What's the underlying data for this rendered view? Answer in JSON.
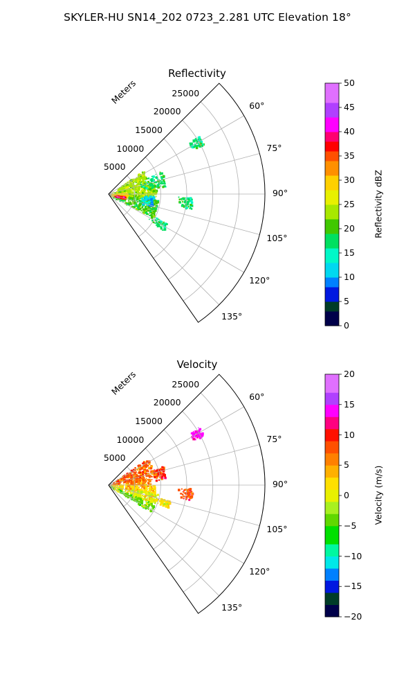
{
  "title": "SKYLER-HU  SN14_202  0723_2.281 UTC Elevation 18°",
  "chart_data": [
    {
      "type": "heatmap",
      "title": "Reflectivity",
      "projection": "polar sector (PPI)",
      "range_label": "Meters",
      "range_ticks": [
        5000,
        10000,
        15000,
        20000,
        25000
      ],
      "range_tick_labels": [
        "5000",
        "10000",
        "15000",
        "20000",
        "25000"
      ],
      "range_max": 30000,
      "azimuth_range_deg": [
        45,
        145
      ],
      "azimuth_ticks": [
        60,
        75,
        90,
        105,
        120,
        135
      ],
      "azimuth_tick_labels": [
        "60°",
        "75°",
        "90°",
        "105°",
        "120°",
        "135°"
      ],
      "grid": true,
      "colorbar": {
        "label": "Reflectivity dBZ",
        "min": 0,
        "max": 50,
        "ticks": [
          0,
          5,
          10,
          15,
          20,
          25,
          30,
          35,
          40,
          45,
          50
        ],
        "tick_labels": [
          "0",
          "5",
          "10",
          "15",
          "20",
          "25",
          "30",
          "35",
          "40",
          "45",
          "50"
        ],
        "colormap": [
          [
            0,
            "#00004a"
          ],
          [
            3,
            "#003c28"
          ],
          [
            5,
            "#0018e0"
          ],
          [
            8,
            "#0080ff"
          ],
          [
            10,
            "#00d8f0"
          ],
          [
            13,
            "#00f8c8"
          ],
          [
            16,
            "#00e060"
          ],
          [
            19,
            "#40c800"
          ],
          [
            22,
            "#a8e800"
          ],
          [
            25,
            "#e8f000"
          ],
          [
            28,
            "#ffd000"
          ],
          [
            31,
            "#ff9000"
          ],
          [
            34,
            "#ff5000"
          ],
          [
            36,
            "#ff0000"
          ],
          [
            38,
            "#ff0070"
          ],
          [
            40,
            "#ff00ff"
          ],
          [
            43,
            "#b040ff"
          ],
          [
            46,
            "#e070ff"
          ],
          [
            50,
            "#f8e0ff"
          ]
        ]
      },
      "echo_regions": [
        {
          "az": [
            55,
            76
          ],
          "range": [
            0,
            8000
          ],
          "value": 22
        },
        {
          "az": [
            76,
            96
          ],
          "range": [
            0,
            9000
          ],
          "value": 24
        },
        {
          "az": [
            96,
            118
          ],
          "range": [
            0,
            9500
          ],
          "value": 20
        },
        {
          "az": [
            84,
            100
          ],
          "range": [
            0,
            3500
          ],
          "value": 29
        },
        {
          "az": [
            98,
            104
          ],
          "range": [
            1000,
            3000
          ],
          "value": 37
        },
        {
          "az": [
            66,
            82
          ],
          "range": [
            6000,
            11000
          ],
          "value": 17
        },
        {
          "az": [
            92,
            106
          ],
          "range": [
            6000,
            8500
          ],
          "value": 12
        },
        {
          "az": [
            92,
            100
          ],
          "range": [
            13000,
            16000
          ],
          "value": 16
        },
        {
          "az": [
            116,
            124
          ],
          "range": [
            9000,
            12500
          ],
          "value": 17
        },
        {
          "az": [
            57,
            62
          ],
          "range": [
            18000,
            20500
          ],
          "value": 16
        }
      ]
    },
    {
      "type": "heatmap",
      "title": "Velocity",
      "projection": "polar sector (PPI)",
      "range_label": "Meters",
      "range_ticks": [
        5000,
        10000,
        15000,
        20000,
        25000
      ],
      "range_tick_labels": [
        "5000",
        "10000",
        "15000",
        "20000",
        "25000"
      ],
      "range_max": 30000,
      "azimuth_range_deg": [
        45,
        145
      ],
      "azimuth_ticks": [
        60,
        75,
        90,
        105,
        120,
        135
      ],
      "azimuth_tick_labels": [
        "60°",
        "75°",
        "90°",
        "105°",
        "120°",
        "135°"
      ],
      "grid": true,
      "colorbar": {
        "label": "Velocity (m/s)",
        "min": -20,
        "max": 20,
        "ticks": [
          -20,
          -15,
          -10,
          -5,
          0,
          5,
          10,
          15,
          20
        ],
        "tick_labels": [
          "−20",
          "−15",
          "−10",
          "−5",
          "0",
          "5",
          "10",
          "15",
          "20"
        ],
        "colormap": [
          [
            -20,
            "#00004a"
          ],
          [
            -18,
            "#003c28"
          ],
          [
            -16,
            "#0018e0"
          ],
          [
            -14,
            "#0080ff"
          ],
          [
            -12,
            "#00e8e8"
          ],
          [
            -10,
            "#00f8a0"
          ],
          [
            -8,
            "#00e000"
          ],
          [
            -5,
            "#60d800"
          ],
          [
            -3,
            "#a8f020"
          ],
          [
            -1,
            "#e8f000"
          ],
          [
            1,
            "#ffe000"
          ],
          [
            3,
            "#ffb000"
          ],
          [
            5,
            "#ff8000"
          ],
          [
            7,
            "#ff5000"
          ],
          [
            9,
            "#ff1000"
          ],
          [
            11,
            "#ff0080"
          ],
          [
            13,
            "#ff00ff"
          ],
          [
            15,
            "#b040ff"
          ],
          [
            17,
            "#e070ff"
          ],
          [
            20,
            "#f8e0ff"
          ]
        ]
      },
      "echo_regions": [
        {
          "az": [
            55,
            78
          ],
          "range": [
            0,
            9000
          ],
          "value": 7
        },
        {
          "az": [
            78,
            88
          ],
          "range": [
            0,
            8000
          ],
          "value": 5
        },
        {
          "az": [
            88,
            100
          ],
          "range": [
            0,
            9000
          ],
          "value": 2
        },
        {
          "az": [
            100,
            112
          ],
          "range": [
            0,
            9500
          ],
          "value": 0
        },
        {
          "az": [
            112,
            122
          ],
          "range": [
            0,
            9500
          ],
          "value": -4
        },
        {
          "az": [
            70,
            84
          ],
          "range": [
            8000,
            11000
          ],
          "value": 9
        },
        {
          "az": [
            92,
            100
          ],
          "range": [
            13000,
            16000
          ],
          "value": 8
        },
        {
          "az": [
            104,
            110
          ],
          "range": [
            9000,
            12000
          ],
          "value": 1
        },
        {
          "az": [
            57,
            62
          ],
          "range": [
            18000,
            20500
          ],
          "value": 14
        }
      ]
    }
  ]
}
